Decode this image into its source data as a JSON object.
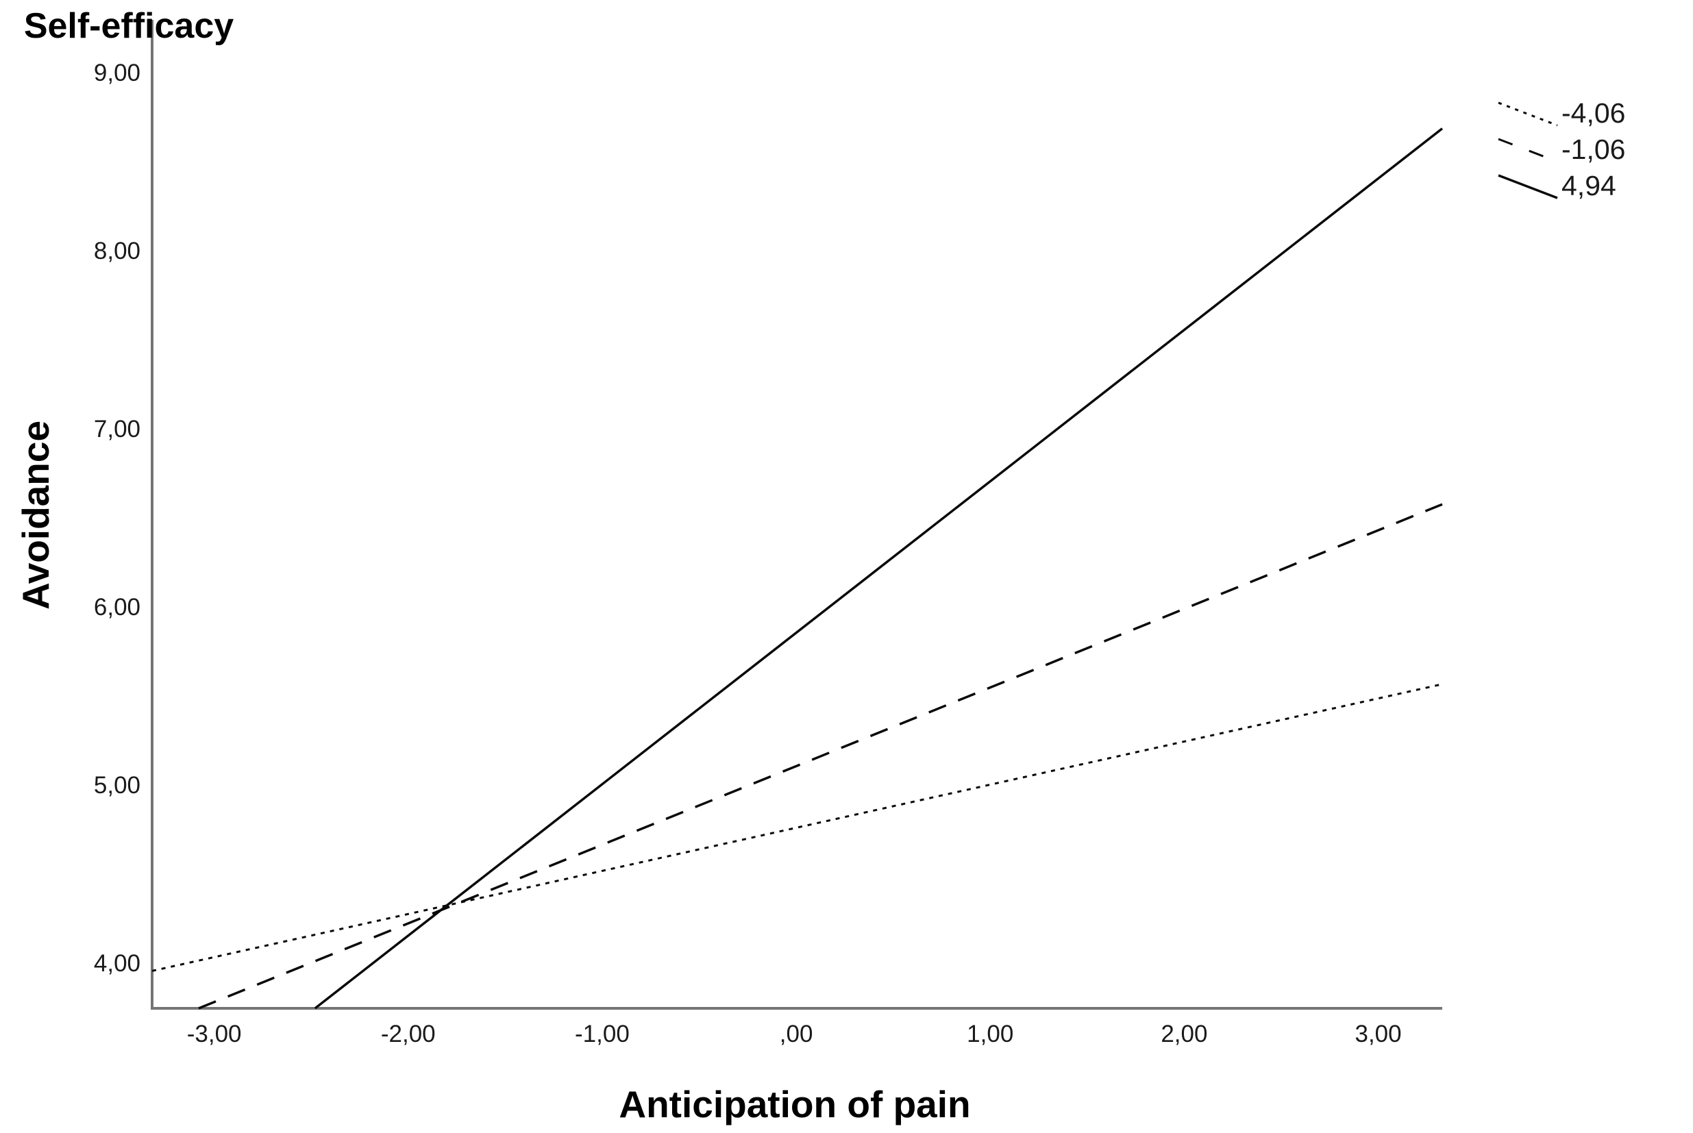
{
  "chart_data": {
    "type": "line",
    "title": "",
    "xlabel": "Anticipation of pain",
    "ylabel": "Avoidance",
    "xlim": [
      -3.32,
      3.33
    ],
    "ylim": [
      3.75,
      9.3
    ],
    "grid": false,
    "line_color": "#0a0a0a",
    "axis_color": "#757575",
    "xticks": [
      {
        "value": -3,
        "label": "-3,00"
      },
      {
        "value": -2,
        "label": "-2,00"
      },
      {
        "value": -1,
        "label": "-1,00"
      },
      {
        "value": 0,
        "label": ",00"
      },
      {
        "value": 1,
        "label": "1,00"
      },
      {
        "value": 2,
        "label": "2,00"
      },
      {
        "value": 3,
        "label": "3,00"
      }
    ],
    "yticks": [
      {
        "value": 4,
        "label": "4,00"
      },
      {
        "value": 5,
        "label": "5,00"
      },
      {
        "value": 6,
        "label": "6,00"
      },
      {
        "value": 7,
        "label": "7,00"
      },
      {
        "value": 8,
        "label": "8,00"
      },
      {
        "value": 9,
        "label": "9,00"
      }
    ],
    "legend": {
      "title": "Self-efficacy",
      "position": "top-right",
      "entries": [
        {
          "label": "-4,06",
          "style": "dotted"
        },
        {
          "label": "-1,06",
          "style": "dashed"
        },
        {
          "label": "4,94",
          "style": "solid"
        }
      ]
    },
    "series": [
      {
        "name": "-4,06",
        "style": "dotted",
        "intercept": 4.76,
        "slope": 0.24,
        "points": [
          {
            "x": -3.32,
            "y": 3.96
          },
          {
            "x": 3.33,
            "y": 5.57
          }
        ]
      },
      {
        "name": "-1,06",
        "style": "dashed",
        "intercept": 5.11,
        "slope": 0.44,
        "points": [
          {
            "x": -3.08,
            "y": 3.75
          },
          {
            "x": 3.33,
            "y": 6.58
          }
        ]
      },
      {
        "name": "4,94",
        "style": "solid",
        "intercept": 5.86,
        "slope": 0.85,
        "points": [
          {
            "x": -2.48,
            "y": 3.75
          },
          {
            "x": 3.33,
            "y": 8.69
          }
        ]
      }
    ]
  }
}
